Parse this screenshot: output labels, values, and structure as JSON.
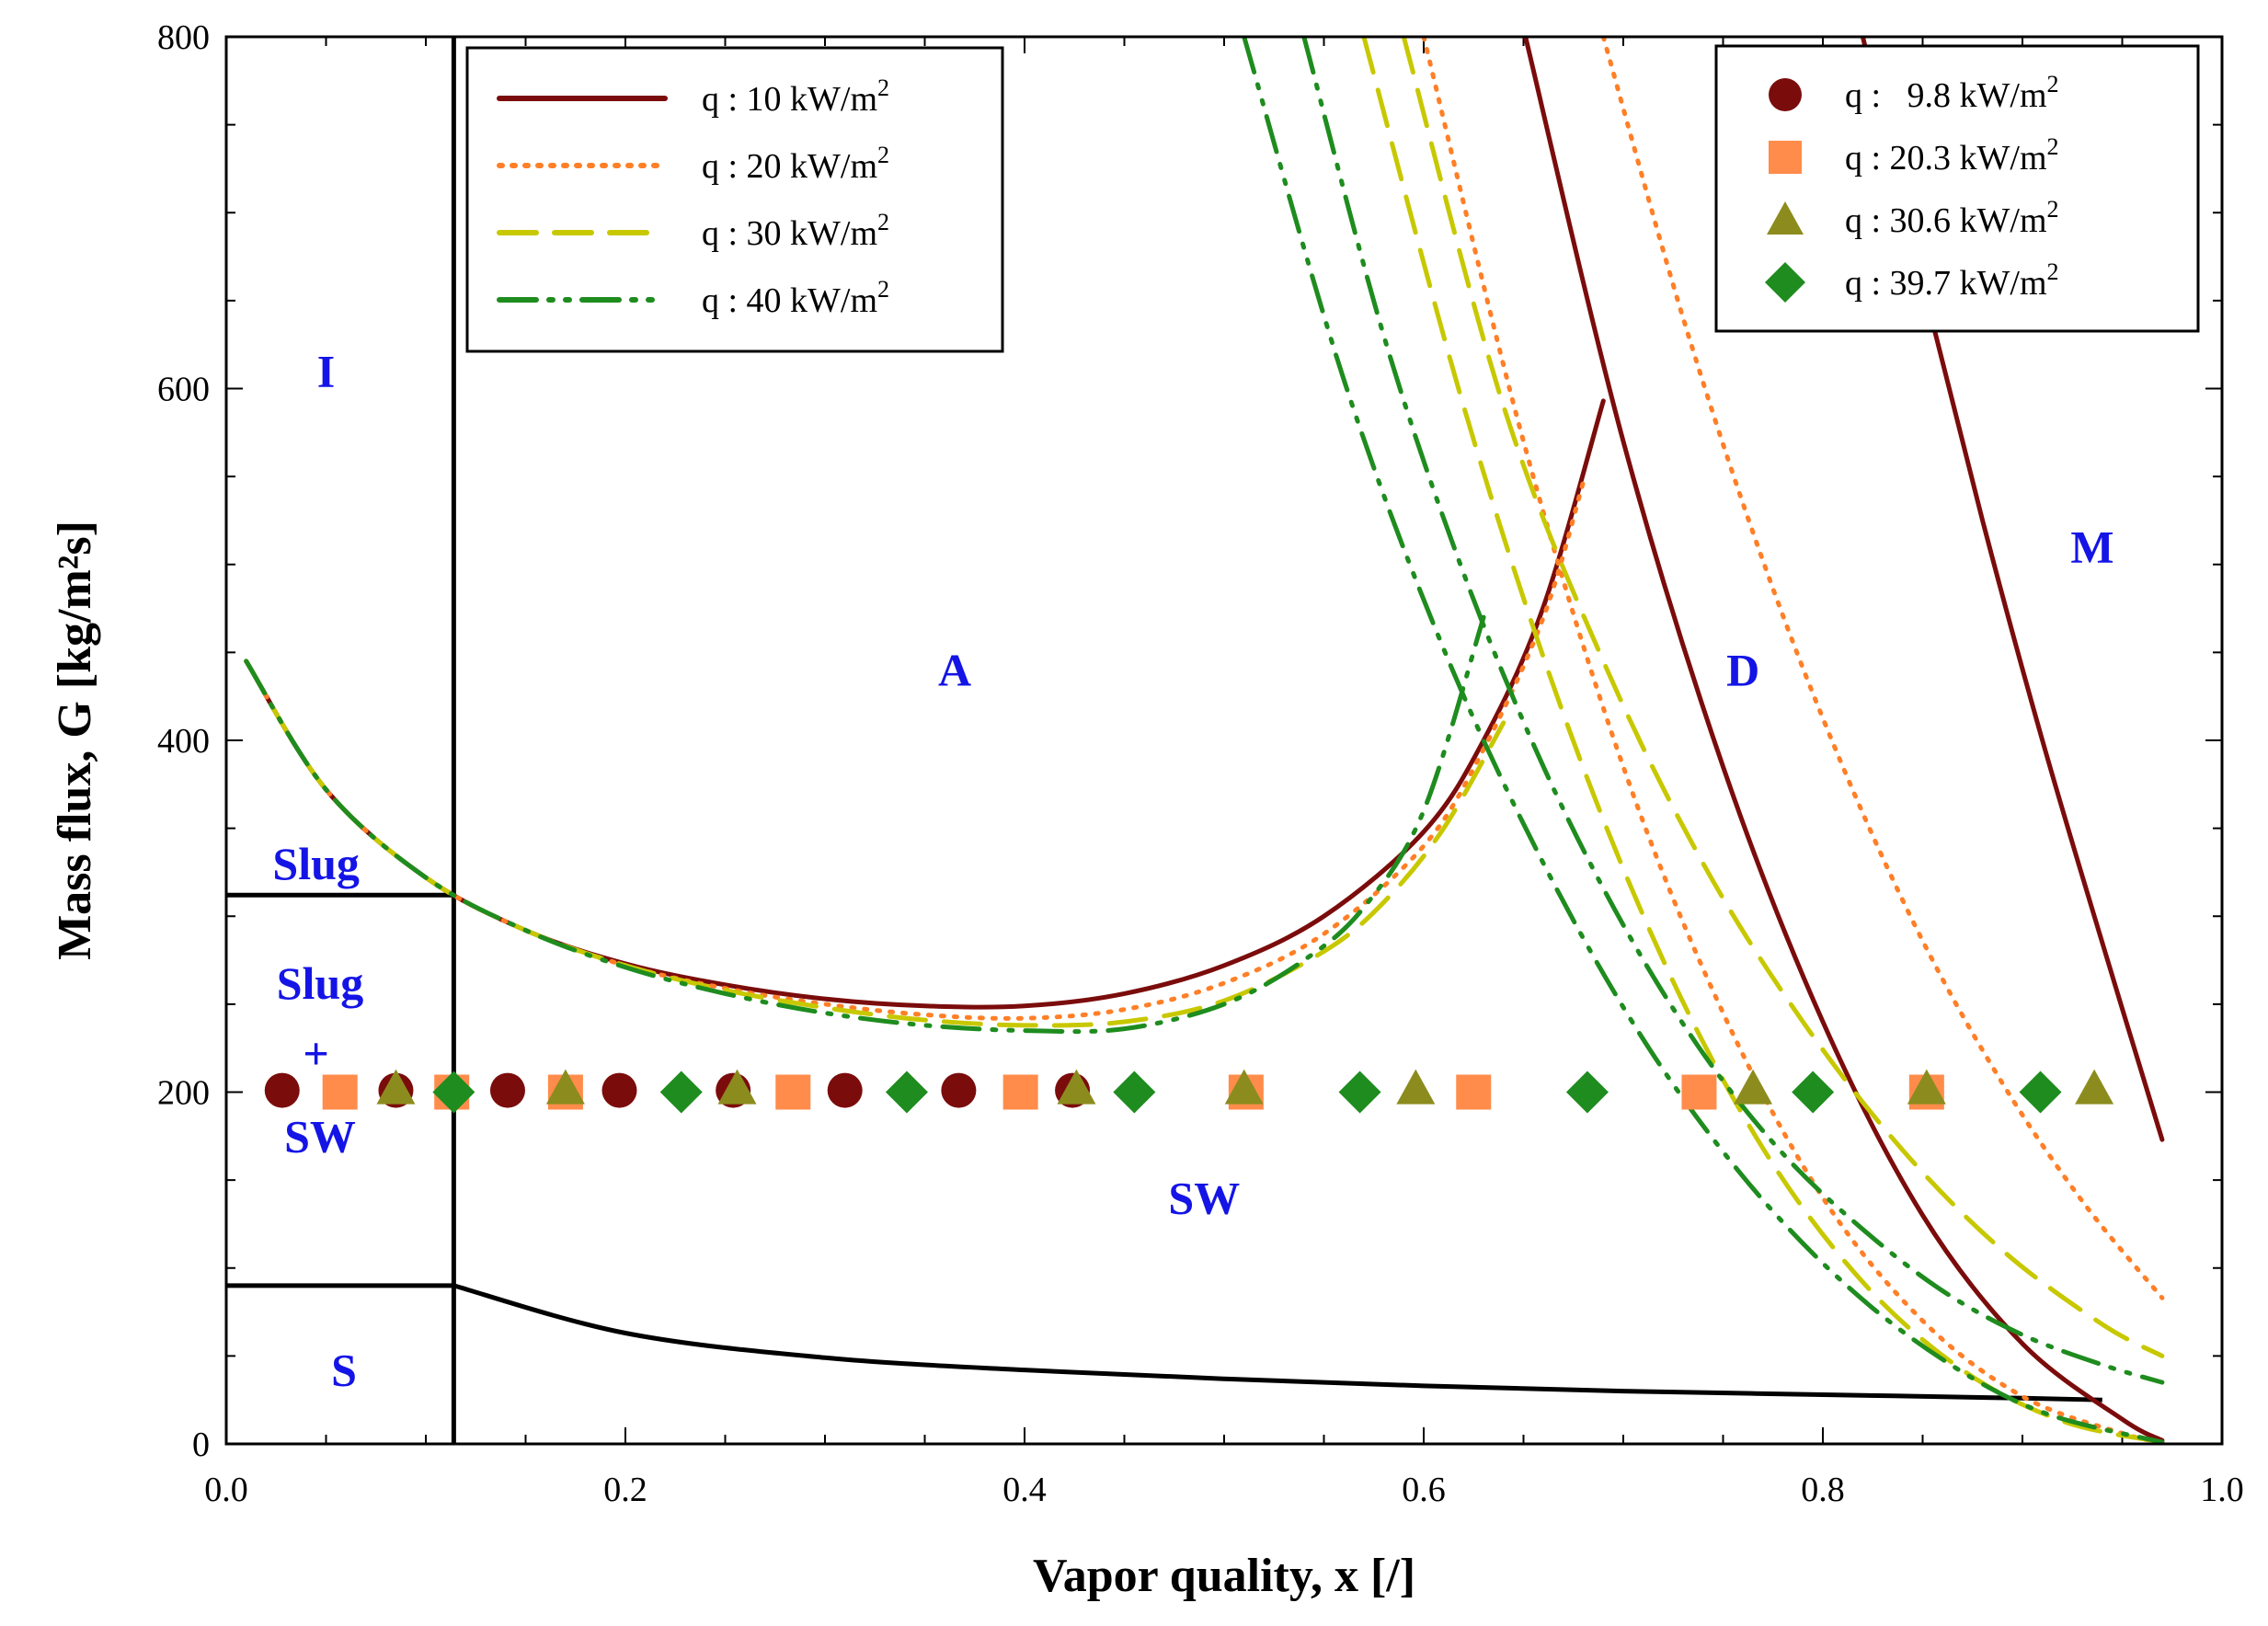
{
  "chart_data": {
    "type": "line",
    "title": "",
    "xlabel": "Vapor quality, x [/]",
    "ylabel": "Mass flux, G [kg/m²s]",
    "xlim": [
      0.0,
      1.0
    ],
    "ylim": [
      0,
      800
    ],
    "x_ticks": [
      "0.0",
      "0.2",
      "0.4",
      "0.6",
      "0.8",
      "1.0"
    ],
    "y_ticks": [
      "0",
      "200",
      "400",
      "600",
      "800"
    ],
    "regions": [
      {
        "label": "I",
        "x": 0.05,
        "y": 610
      },
      {
        "label": "Slug",
        "x": 0.045,
        "y": 330
      },
      {
        "label": "Slug",
        "x": 0.047,
        "y": 262
      },
      {
        "label": "+",
        "x": 0.045,
        "y": 222
      },
      {
        "label": "SW",
        "x": 0.047,
        "y": 175
      },
      {
        "label": "S",
        "x": 0.059,
        "y": 42
      },
      {
        "label": "A",
        "x": 0.365,
        "y": 440
      },
      {
        "label": "SW",
        "x": 0.49,
        "y": 140
      },
      {
        "label": "D",
        "x": 0.76,
        "y": 440
      },
      {
        "label": "M",
        "x": 0.935,
        "y": 510
      }
    ],
    "boundaries": [
      {
        "name": "I-boundary",
        "x": [
          0.114,
          0.114
        ],
        "y": [
          0,
          800
        ]
      },
      {
        "name": "slug-upper",
        "x": [
          0.0,
          0.114
        ],
        "y": [
          312,
          312
        ]
      },
      {
        "name": "slug-lower",
        "x": [
          0.0,
          0.114
        ],
        "y": [
          90,
          90
        ]
      },
      {
        "name": "stratified",
        "x": [
          0.114,
          0.2,
          0.3,
          0.4,
          0.5,
          0.6,
          0.7,
          0.8,
          0.9,
          0.94
        ],
        "y": [
          90,
          63,
          49,
          42,
          37,
          33,
          30,
          28,
          26,
          25
        ]
      }
    ],
    "series": [
      {
        "name": "q : 10 kW/m²",
        "style": "solid",
        "color": "#7b0c0c",
        "segments": [
          {
            "x": [
              0.01,
              0.05,
              0.1,
              0.15,
              0.2,
              0.25,
              0.3,
              0.35,
              0.4,
              0.45,
              0.5,
              0.55,
              0.6,
              0.63,
              0.66,
              0.69
            ],
            "y": [
              445,
              372,
              322,
              292,
              273,
              261,
              253,
              249,
              249,
              256,
              272,
              300,
              348,
              400,
              476,
              593
            ]
          },
          {
            "x": [
              0.651,
              0.7,
              0.75,
              0.8,
              0.85,
              0.9,
              0.95,
              0.97
            ],
            "y": [
              800,
              570,
              385,
              240,
              130,
              57,
              14,
              2
            ]
          },
          {
            "x": [
              0.82,
              0.85,
              0.88,
              0.91,
              0.94,
              0.97
            ],
            "y": [
              800,
              660,
              525,
              400,
              285,
              173
            ]
          }
        ]
      },
      {
        "name": "q : 20 kW/m²",
        "style": "dotted",
        "color": "#ff7f27",
        "segments": [
          {
            "x": [
              0.01,
              0.05,
              0.1,
              0.15,
              0.2,
              0.25,
              0.3,
              0.35,
              0.4,
              0.45,
              0.5,
              0.55,
              0.6,
              0.63,
              0.66,
              0.68
            ],
            "y": [
              445,
              372,
              322,
              292,
              272,
              259,
              250,
              244,
              242,
              247,
              262,
              290,
              340,
              395,
              470,
              547
            ]
          },
          {
            "x": [
              0.6,
              0.65,
              0.7,
              0.75,
              0.8,
              0.85,
              0.9,
              0.95,
              0.97
            ],
            "y": [
              800,
              570,
              385,
              245,
              140,
              70,
              27,
              6,
              1
            ]
          },
          {
            "x": [
              0.69,
              0.73,
              0.77,
              0.81,
              0.85,
              0.89,
              0.93,
              0.97
            ],
            "y": [
              800,
              640,
              502,
              385,
              286,
              205,
              138,
              83
            ]
          }
        ]
      },
      {
        "name": "q : 30 kW/m²",
        "style": "dashed",
        "color": "#c8c800",
        "segments": [
          {
            "x": [
              0.01,
              0.05,
              0.1,
              0.15,
              0.2,
              0.25,
              0.3,
              0.35,
              0.4,
              0.45,
              0.5,
              0.55,
              0.58,
              0.61,
              0.64
            ],
            "y": [
              445,
              372,
              322,
              292,
              272,
              258,
              248,
              241,
              238,
              240,
              252,
              280,
              308,
              350,
              410
            ]
          },
          {
            "x": [
              0.57,
              0.62,
              0.67,
              0.72,
              0.77,
              0.82,
              0.87,
              0.92,
              0.97
            ],
            "y": [
              800,
              590,
              415,
              275,
              168,
              92,
              42,
              13,
              1
            ]
          },
          {
            "x": [
              0.59,
              0.64,
              0.69,
              0.74,
              0.79,
              0.84,
              0.89,
              0.94,
              0.97
            ],
            "y": [
              800,
              590,
              445,
              330,
              240,
              167,
              110,
              68,
              50
            ]
          }
        ]
      },
      {
        "name": "q : 40 kW/m²",
        "style": "dashdotdot",
        "color": "#1e8c1e",
        "segments": [
          {
            "x": [
              0.01,
              0.05,
              0.1,
              0.15,
              0.2,
              0.25,
              0.3,
              0.35,
              0.4,
              0.45,
              0.5,
              0.54,
              0.57,
              0.6,
              0.63
            ],
            "y": [
              445,
              372,
              322,
              292,
              271,
              256,
              245,
              238,
              235,
              236,
              250,
              275,
              305,
              360,
              470
            ]
          },
          {
            "x": [
              0.51,
              0.56,
              0.61,
              0.66,
              0.71,
              0.76,
              0.81,
              0.86,
              0.91,
              0.97
            ],
            "y": [
              800,
              605,
              452,
              330,
              230,
              152,
              92,
              48,
              18,
              1
            ]
          },
          {
            "x": [
              0.54,
              0.58,
              0.62,
              0.66,
              0.7,
              0.74,
              0.78,
              0.82,
              0.86,
              0.9,
              0.94,
              0.97
            ],
            "y": [
              800,
              630,
              495,
              385,
              295,
              222,
              165,
              122,
              87,
              62,
              45,
              35
            ]
          }
        ]
      }
    ],
    "markers": [
      {
        "name": "q :  9.8 kW/m²",
        "shape": "circle",
        "color": "#7b0c0c",
        "x": [
          0.028,
          0.085,
          0.141,
          0.197,
          0.254,
          0.31,
          0.367,
          0.424
        ],
        "y": [
          201,
          201,
          201,
          201,
          201,
          201,
          201,
          201
        ]
      },
      {
        "name": "q : 20.3 kW/m²",
        "shape": "square",
        "color": "#ff8c4b",
        "x": [
          0.057,
          0.113,
          0.17,
          0.284,
          0.398,
          0.511,
          0.625,
          0.738,
          0.852
        ],
        "y": [
          200,
          200,
          200,
          200,
          200,
          200,
          200,
          200,
          200
        ]
      },
      {
        "name": "q : 30.6 kW/m²",
        "shape": "triangle",
        "color": "#8c8c1e",
        "x": [
          0.085,
          0.17,
          0.256,
          0.426,
          0.51,
          0.596,
          0.765,
          0.852,
          0.936
        ],
        "y": [
          202,
          202,
          202,
          202,
          202,
          202,
          202,
          202,
          202
        ]
      },
      {
        "name": "q : 39.7 kW/m²",
        "shape": "diamond",
        "color": "#1e8c1e",
        "x": [
          0.114,
          0.228,
          0.341,
          0.455,
          0.568,
          0.682,
          0.795,
          0.909
        ],
        "y": [
          200,
          200,
          200,
          200,
          200,
          200,
          200,
          200
        ]
      }
    ],
    "legend_lines": {
      "position": "top-left-inside",
      "labels": [
        "q : 10 kW/m",
        "q : 20 kW/m",
        "q : 30 kW/m",
        "q : 40 kW/m"
      ],
      "superscript": "2"
    },
    "legend_markers": {
      "position": "top-right",
      "labels": [
        "q :   9.8 kW/m",
        "q : 20.3 kW/m",
        "q : 30.6 kW/m",
        "q : 39.7 kW/m"
      ],
      "superscript": "2"
    }
  }
}
